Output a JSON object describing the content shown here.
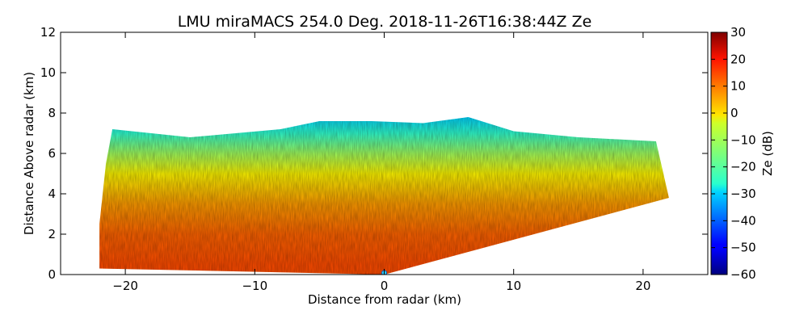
{
  "chart_data": {
    "type": "heatmap",
    "title": "LMU miraMACS 254.0 Deg. 2018-11-26T16:38:44Z  Ze",
    "xlabel": "Distance from radar (km)",
    "ylabel": "Distance Above radar  (km)",
    "xlim": [
      -25,
      25
    ],
    "ylim": [
      0,
      12
    ],
    "xticks": [
      -20,
      -10,
      0,
      10,
      20
    ],
    "xtick_labels": [
      "−20",
      "−10",
      "0",
      "10",
      "20"
    ],
    "yticks": [
      0,
      2,
      4,
      6,
      8,
      10,
      12
    ],
    "ytick_labels": [
      "0",
      "2",
      "4",
      "6",
      "8",
      "10",
      "12"
    ],
    "colorbar": {
      "label": "Ze (dB)",
      "range": [
        -60,
        30
      ],
      "ticks": [
        30,
        20,
        10,
        0,
        -10,
        -20,
        -30,
        -40,
        -50,
        -60
      ],
      "tick_labels": [
        "30",
        "20",
        "10",
        "0",
        "−10",
        "−20",
        "−30",
        "−40",
        "−50",
        "−60"
      ],
      "colormap": "jet"
    },
    "echo_region": {
      "description": "RHI scan wedge of reflectivity",
      "outline_km": [
        [
          -22,
          0.3
        ],
        [
          -22,
          2.5
        ],
        [
          -21.5,
          5.5
        ],
        [
          -21,
          7.2
        ],
        [
          -15,
          6.8
        ],
        [
          -8,
          7.2
        ],
        [
          -5,
          7.6
        ],
        [
          -1,
          7.6
        ],
        [
          3,
          7.5
        ],
        [
          6.5,
          7.8
        ],
        [
          10,
          7.1
        ],
        [
          15,
          6.8
        ],
        [
          21,
          6.6
        ],
        [
          22,
          3.8
        ],
        [
          0,
          0
        ],
        [
          -22,
          0.3
        ]
      ],
      "ze_profile_by_height_km": [
        {
          "height": 0.5,
          "ze": 12
        },
        {
          "height": 2,
          "ze": 10
        },
        {
          "height": 3.5,
          "ze": 5
        },
        {
          "height": 5,
          "ze": -3
        },
        {
          "height": 6,
          "ze": -12
        },
        {
          "height": 7,
          "ze": -22
        },
        {
          "height": 7.8,
          "ze": -30
        }
      ]
    }
  }
}
